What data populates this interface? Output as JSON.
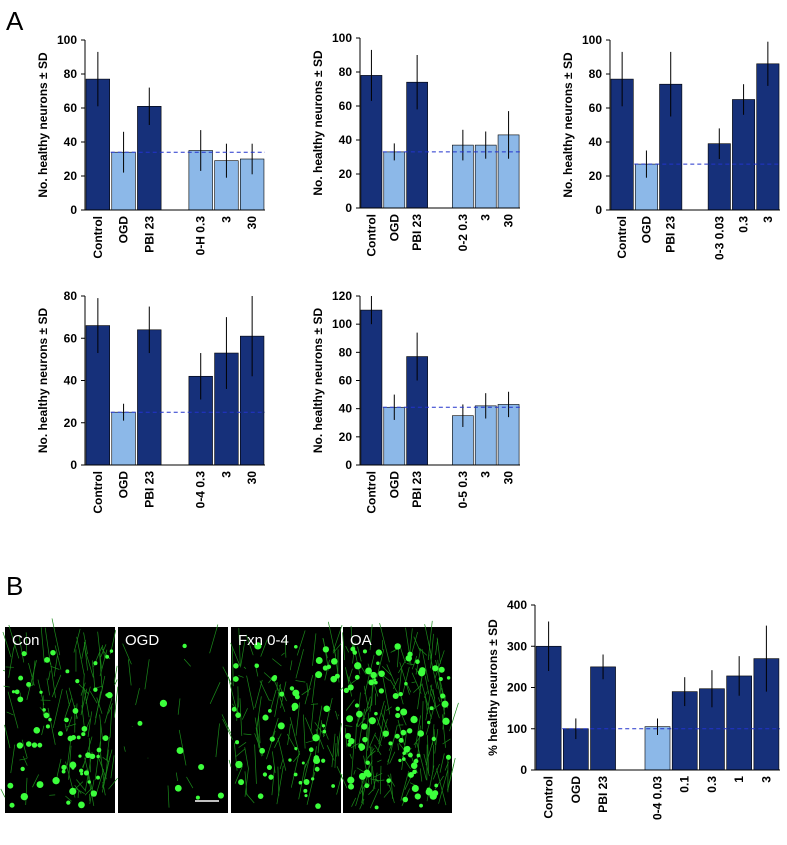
{
  "panel_labels": [
    "A",
    "B"
  ],
  "images": [
    {
      "label": "Con"
    },
    {
      "label": "OGD"
    },
    {
      "label": "Fxn 0-4"
    },
    {
      "label": "OA"
    }
  ],
  "chart_data": [
    {
      "type": "bar",
      "y_label": "No. healthy neurons ± SD",
      "categories": [
        "Control",
        "OGD",
        "PBI 23",
        null,
        "0-H 0.3",
        "3",
        "30"
      ],
      "values": [
        77,
        34,
        61,
        null,
        35,
        29,
        30
      ],
      "errors": [
        16,
        12,
        11,
        null,
        12,
        10,
        9
      ],
      "colors": [
        "#16307a",
        "#8cb8e8",
        "#16307a",
        null,
        "#8cb8e8",
        "#8cb8e8",
        "#8cb8e8"
      ],
      "reference": 34,
      "ylim": [
        0,
        100
      ],
      "yticks": [
        0,
        20,
        40,
        60,
        80,
        100
      ]
    },
    {
      "type": "bar",
      "y_label": "No. healthy neurons ± SD",
      "categories": [
        "Control",
        "OGD",
        "PBI 23",
        null,
        "0-2 0.3",
        "3",
        "30"
      ],
      "values": [
        78,
        33,
        74,
        null,
        37,
        37,
        43
      ],
      "errors": [
        15,
        5,
        16,
        null,
        9,
        8,
        14
      ],
      "colors": [
        "#16307a",
        "#8cb8e8",
        "#16307a",
        null,
        "#8cb8e8",
        "#8cb8e8",
        "#8cb8e8"
      ],
      "reference": 33,
      "ylim": [
        0,
        100
      ],
      "yticks": [
        0,
        20,
        40,
        60,
        80,
        100
      ]
    },
    {
      "type": "bar",
      "y_label": "No. healthy neurons ± SD",
      "categories": [
        "Control",
        "OGD",
        "PBI 23",
        null,
        "0-3 0.03",
        "0.3",
        "3"
      ],
      "values": [
        77,
        27,
        74,
        null,
        39,
        65,
        86
      ],
      "errors": [
        16,
        8,
        19,
        null,
        9,
        9,
        13
      ],
      "colors": [
        "#16307a",
        "#8cb8e8",
        "#16307a",
        null,
        "#16307a",
        "#16307a",
        "#16307a"
      ],
      "reference": 27,
      "ylim": [
        0,
        100
      ],
      "yticks": [
        0,
        20,
        40,
        60,
        80,
        100
      ]
    },
    {
      "type": "bar",
      "y_label": "No. healthy neurons ± SD",
      "categories": [
        "Control",
        "OGD",
        "PBI 23",
        null,
        "0-4 0.3",
        "3",
        "30"
      ],
      "values": [
        66,
        25,
        64,
        null,
        42,
        53,
        61
      ],
      "errors": [
        13,
        4,
        11,
        null,
        11,
        17,
        19
      ],
      "colors": [
        "#16307a",
        "#8cb8e8",
        "#16307a",
        null,
        "#16307a",
        "#16307a",
        "#16307a"
      ],
      "reference": 25,
      "ylim": [
        0,
        80
      ],
      "yticks": [
        0,
        20,
        40,
        60,
        80
      ]
    },
    {
      "type": "bar",
      "y_label": "No. healthy neurons ± SD",
      "categories": [
        "Control",
        "OGD",
        "PBI 23",
        null,
        "0-5 0.3",
        "3",
        "30"
      ],
      "values": [
        110,
        41,
        77,
        null,
        35,
        42,
        43
      ],
      "errors": [
        10,
        9,
        17,
        null,
        8,
        9,
        9
      ],
      "colors": [
        "#16307a",
        "#8cb8e8",
        "#16307a",
        null,
        "#8cb8e8",
        "#8cb8e8",
        "#8cb8e8"
      ],
      "reference": 41,
      "ylim": [
        0,
        120
      ],
      "yticks": [
        0,
        20,
        40,
        60,
        80,
        100,
        120
      ]
    },
    {
      "type": "bar",
      "y_label": "% healthy neurons ± SD",
      "categories": [
        "Control",
        "OGD",
        "PBI 23",
        null,
        "0-4 0.03",
        "0.1",
        "0.3",
        "1",
        "3"
      ],
      "values": [
        300,
        100,
        250,
        null,
        105,
        190,
        197,
        228,
        270
      ],
      "errors": [
        60,
        25,
        30,
        null,
        20,
        35,
        45,
        48,
        80
      ],
      "colors": [
        "#16307a",
        "#16307a",
        "#16307a",
        null,
        "#8cb8e8",
        "#16307a",
        "#16307a",
        "#16307a",
        "#16307a"
      ],
      "reference": 100,
      "ylim": [
        0,
        400
      ],
      "yticks": [
        0,
        100,
        200,
        300,
        400
      ]
    }
  ]
}
